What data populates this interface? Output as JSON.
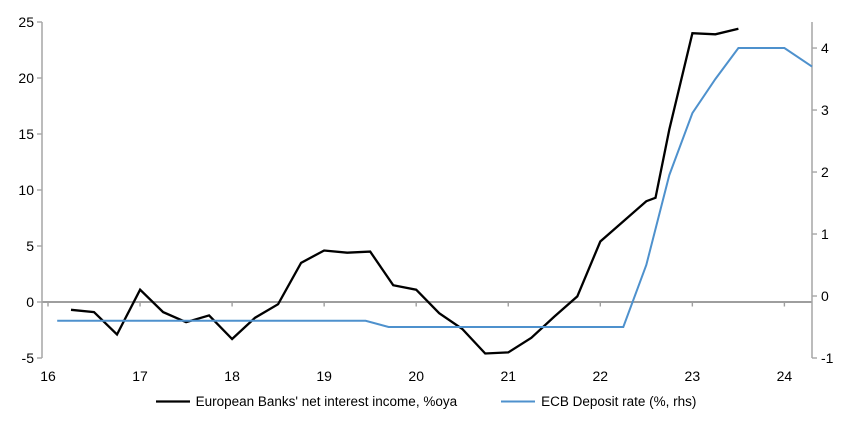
{
  "chart_data": {
    "type": "line",
    "title": "",
    "legend_position": "bottom-center",
    "grid": "zero-line-only",
    "x_axis": {
      "tick_labels": [
        "16",
        "17",
        "18",
        "19",
        "20",
        "21",
        "22",
        "23",
        "24"
      ],
      "tick_values": [
        16,
        17,
        18,
        19,
        20,
        21,
        22,
        23,
        24
      ],
      "range": [
        15.93,
        24.3
      ],
      "label_position": "low"
    },
    "y_axis_left": {
      "tick_labels": [
        "-5",
        "0",
        "5",
        "10",
        "15",
        "20",
        "25"
      ],
      "tick_values": [
        -5,
        0,
        5,
        10,
        15,
        20,
        25
      ],
      "range": [
        -5,
        25
      ]
    },
    "y_axis_right": {
      "tick_labels": [
        "-1",
        "0",
        "1",
        "2",
        "3",
        "4"
      ],
      "tick_values": [
        -1,
        0,
        1,
        2,
        3,
        4
      ],
      "range": [
        -1,
        4.42
      ]
    },
    "series": [
      {
        "name": "European Banks' net interest income, %oya",
        "color": "#000000",
        "width": 2.3,
        "axis": "left",
        "points": [
          [
            16.25,
            -0.7
          ],
          [
            16.5,
            -0.9
          ],
          [
            16.75,
            -2.9
          ],
          [
            17,
            1.1
          ],
          [
            17.25,
            -0.9
          ],
          [
            17.5,
            -1.8
          ],
          [
            17.75,
            -1.2
          ],
          [
            18,
            -3.3
          ],
          [
            18.25,
            -1.4
          ],
          [
            18.5,
            -0.2
          ],
          [
            18.75,
            3.5
          ],
          [
            19,
            4.6
          ],
          [
            19.25,
            4.4
          ],
          [
            19.5,
            4.5
          ],
          [
            19.75,
            1.5
          ],
          [
            20,
            1.1
          ],
          [
            20.25,
            -1.0
          ],
          [
            20.5,
            -2.4
          ],
          [
            20.75,
            -4.6
          ],
          [
            21,
            -4.5
          ],
          [
            21.25,
            -3.2
          ],
          [
            21.5,
            -1.3
          ],
          [
            21.75,
            0.5
          ],
          [
            22,
            5.4
          ],
          [
            22.25,
            7.2
          ],
          [
            22.5,
            9.0
          ],
          [
            22.6,
            9.3
          ],
          [
            22.75,
            15.4
          ],
          [
            23,
            24.0
          ],
          [
            23.25,
            23.9
          ],
          [
            23.5,
            24.4
          ]
        ]
      },
      {
        "name": "ECB Deposit rate (%, rhs)",
        "color": "#4E91CD",
        "width": 2,
        "axis": "right",
        "points": [
          [
            16.1,
            -0.4
          ],
          [
            19.45,
            -0.4
          ],
          [
            19.7,
            -0.5
          ],
          [
            22.25,
            -0.5
          ],
          [
            22.5,
            0.5
          ],
          [
            22.75,
            1.95
          ],
          [
            23,
            2.95
          ],
          [
            23.25,
            3.5
          ],
          [
            23.5,
            4.0
          ],
          [
            24,
            4.0
          ],
          [
            24.3,
            3.7
          ]
        ]
      }
    ],
    "colors": {
      "axis": "#A6A6A6",
      "zero_line": "#9E9E9E",
      "text": "#000000",
      "background": "#FFFFFF"
    }
  }
}
